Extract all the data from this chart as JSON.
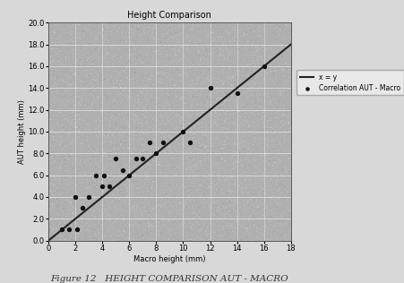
{
  "title": "Height Comparison",
  "xlabel": "Macro height (mm)",
  "ylabel": "AUT height (mm)",
  "xlim": [
    0,
    18
  ],
  "ylim": [
    0,
    20
  ],
  "xticks": [
    0,
    2,
    4,
    6,
    8,
    10,
    12,
    14,
    16,
    18
  ],
  "ytick_vals": [
    0.0,
    2.0,
    4.0,
    6.0,
    8.0,
    10.0,
    12.0,
    14.0,
    16.0,
    18.0,
    20.0
  ],
  "ytick_labels": [
    "0.0",
    "2.0",
    "4.0",
    "6.0",
    "8.0",
    "10.0",
    "12.0",
    "14.0",
    "16.0",
    "18.0",
    "20.0"
  ],
  "scatter_x": [
    1.0,
    1.5,
    2.0,
    2.1,
    2.5,
    3.0,
    3.5,
    4.0,
    4.1,
    4.5,
    5.0,
    5.5,
    6.0,
    6.5,
    7.0,
    7.5,
    8.0,
    8.5,
    10.0,
    10.5,
    12.0,
    14.0,
    16.0
  ],
  "scatter_y": [
    1.0,
    1.0,
    4.0,
    1.0,
    3.0,
    4.0,
    6.0,
    5.0,
    6.0,
    5.0,
    7.5,
    6.5,
    6.0,
    7.5,
    7.5,
    9.0,
    8.0,
    9.0,
    10.0,
    9.0,
    14.0,
    13.5,
    16.0
  ],
  "line_x": [
    0,
    18
  ],
  "line_y": [
    0,
    18
  ],
  "scatter_color": "#111111",
  "line_color": "#222222",
  "plot_bg_color": "#b0b0b0",
  "fig_bg_color": "#d8d8d8",
  "legend_scatter": "Correlation AUT - Macro",
  "legend_line": "x = y",
  "caption": "Figure 12   HEIGHT COMPARISON AUT - MACRO",
  "title_fontsize": 7,
  "label_fontsize": 6,
  "tick_fontsize": 6,
  "legend_fontsize": 5.5,
  "caption_fontsize": 7.5
}
